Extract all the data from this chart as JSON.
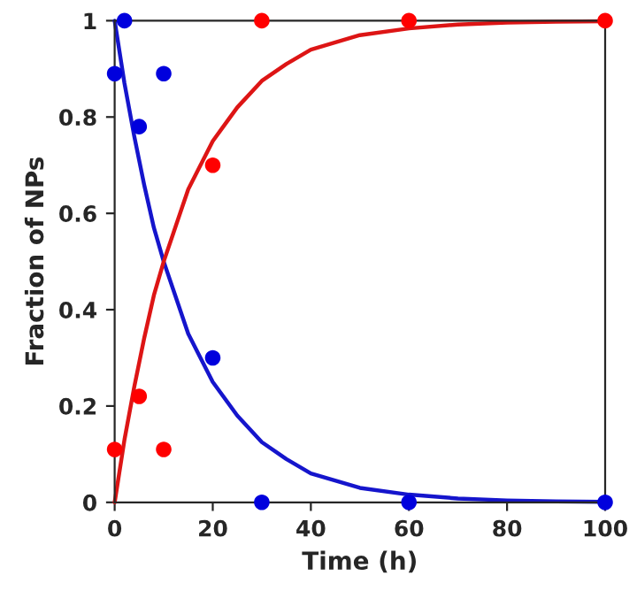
{
  "chart_data": {
    "type": "scatter",
    "xlabel": "Time (h)",
    "ylabel": "Fraction of NPs",
    "xlim": [
      0,
      100
    ],
    "ylim": [
      0,
      1
    ],
    "xticks": [
      0,
      20,
      40,
      60,
      80,
      100
    ],
    "yticks": [
      0,
      0.2,
      0.4,
      0.6,
      0.8,
      1
    ],
    "grid": false,
    "legend": false,
    "marker": "circle",
    "series": [
      {
        "type": "line",
        "color": "#1515cc",
        "x": [
          0,
          2,
          4,
          6,
          8,
          10,
          12,
          15,
          18,
          20,
          25,
          30,
          35,
          40,
          50,
          60,
          70,
          80,
          90,
          100
        ],
        "values": [
          1,
          0.87,
          0.76,
          0.66,
          0.57,
          0.5,
          0.44,
          0.35,
          0.29,
          0.25,
          0.18,
          0.125,
          0.09,
          0.06,
          0.03,
          0.016,
          0.008,
          0.004,
          0.002,
          0.001
        ],
        "marker": "none"
      },
      {
        "type": "line",
        "color": "#dd1515",
        "x": [
          0,
          2,
          4,
          6,
          8,
          10,
          12,
          15,
          18,
          20,
          25,
          30,
          35,
          40,
          50,
          60,
          70,
          80,
          90,
          100
        ],
        "values": [
          0,
          0.13,
          0.24,
          0.34,
          0.43,
          0.5,
          0.56,
          0.65,
          0.71,
          0.75,
          0.82,
          0.875,
          0.91,
          0.94,
          0.97,
          0.984,
          0.992,
          0.996,
          0.998,
          0.999
        ],
        "marker": "none"
      },
      {
        "color": "#0000dd",
        "x": [
          0,
          2,
          5,
          10,
          20,
          30,
          60,
          100
        ],
        "values": [
          0.89,
          1,
          0.78,
          0.89,
          0.3,
          0,
          0,
          0
        ]
      },
      {
        "color": "#ff0000",
        "x": [
          0,
          5,
          10,
          20,
          30,
          60,
          100
        ],
        "values": [
          0.11,
          0.22,
          0.11,
          0.7,
          1,
          1,
          1
        ]
      }
    ]
  }
}
